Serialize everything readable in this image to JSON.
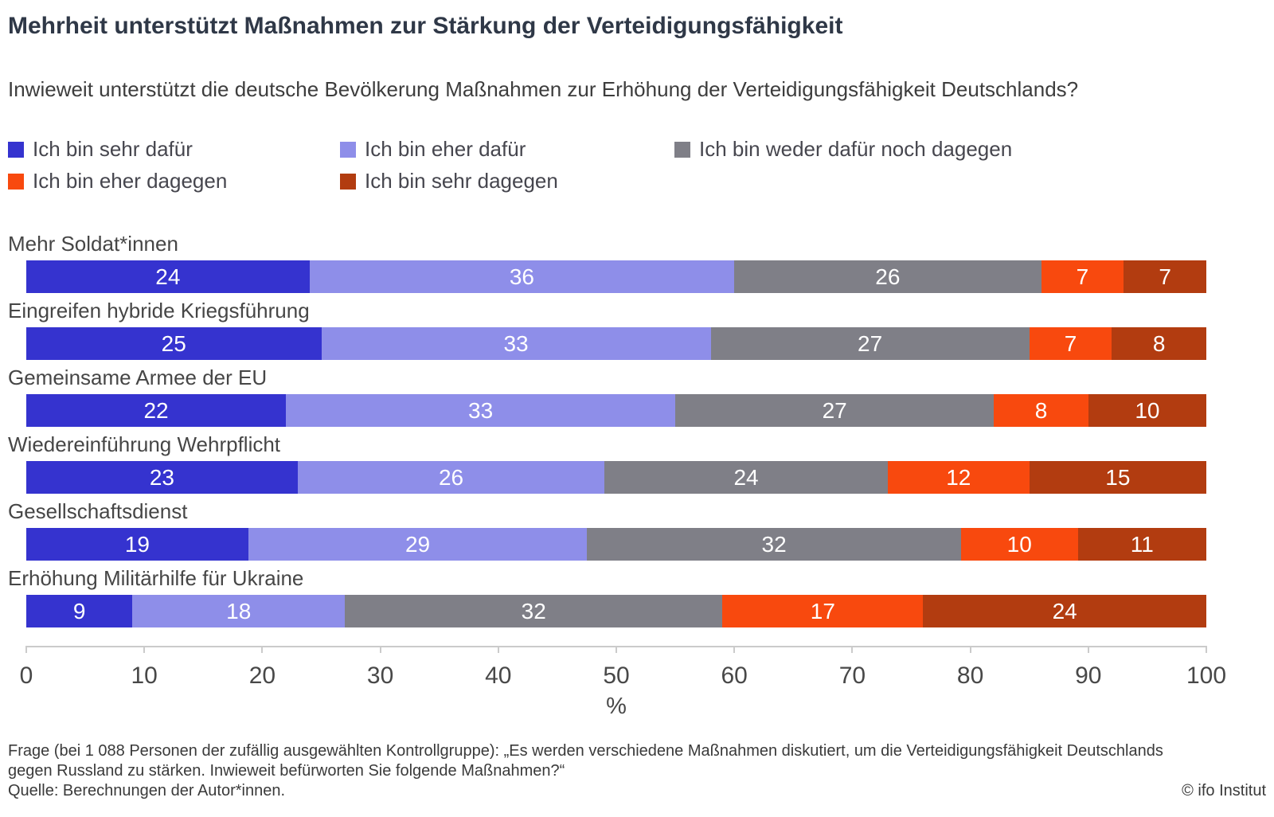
{
  "title": "Mehrheit unterstützt Maßnahmen zur Stärkung der Verteidigungsfähigkeit",
  "subtitle": "Inwieweit unterstützt die deutsche Bevölkerung Maßnahmen zur Erhöhung der Verteidigungsfähigkeit Deutschlands?",
  "legend": {
    "items": [
      {
        "label": "Ich bin sehr dafür",
        "color": "#3533cf"
      },
      {
        "label": "Ich bin eher dafür",
        "color": "#8e8ee9"
      },
      {
        "label": "Ich bin weder dafür noch dagegen",
        "color": "#7f7f87"
      },
      {
        "label": "Ich bin eher dagegen",
        "color": "#f8490e"
      },
      {
        "label": "Ich bin sehr dagegen",
        "color": "#b23c10"
      }
    ]
  },
  "chart_data": {
    "type": "bar",
    "orientation": "horizontal-stacked",
    "categories": [
      "Mehr Soldat*innen",
      "Eingreifen hybride Kriegsführung",
      "Gemeinsame Armee der EU",
      "Wiedereinführung Wehrpflicht",
      "Gesellschaftsdienst",
      "Erhöhung Militärhilfe für Ukraine"
    ],
    "series": [
      {
        "name": "Ich bin sehr dafür",
        "color": "#3533cf",
        "values": [
          24,
          25,
          22,
          23,
          19,
          9
        ]
      },
      {
        "name": "Ich bin eher dafür",
        "color": "#8e8ee9",
        "values": [
          36,
          33,
          33,
          26,
          29,
          18
        ]
      },
      {
        "name": "Ich bin weder dafür noch dagegen",
        "color": "#7f7f87",
        "values": [
          26,
          27,
          27,
          24,
          32,
          32
        ]
      },
      {
        "name": "Ich bin eher dagegen",
        "color": "#f8490e",
        "values": [
          7,
          7,
          8,
          12,
          10,
          17
        ]
      },
      {
        "name": "Ich bin sehr dagegen",
        "color": "#b23c10",
        "values": [
          7,
          8,
          10,
          15,
          11,
          24
        ]
      }
    ],
    "xlabel": "%",
    "xlim": [
      0,
      100
    ],
    "xticks": [
      0,
      10,
      20,
      30,
      40,
      50,
      60,
      70,
      80,
      90,
      100
    ],
    "grid": false,
    "legend_position": "top"
  },
  "footer": {
    "question": "Frage (bei 1 088 Personen der zufällig ausgewählten Kontrollgruppe): „Es werden verschiedene Maßnahmen diskutiert, um die Verteidigungsfähigkeit Deutschlands gegen Russland zu stärken. Inwieweit befürworten Sie folgende Maßnahmen?“",
    "source": "Quelle: Berechnungen der Autor*innen.",
    "copyright": "© ifo Institut"
  }
}
